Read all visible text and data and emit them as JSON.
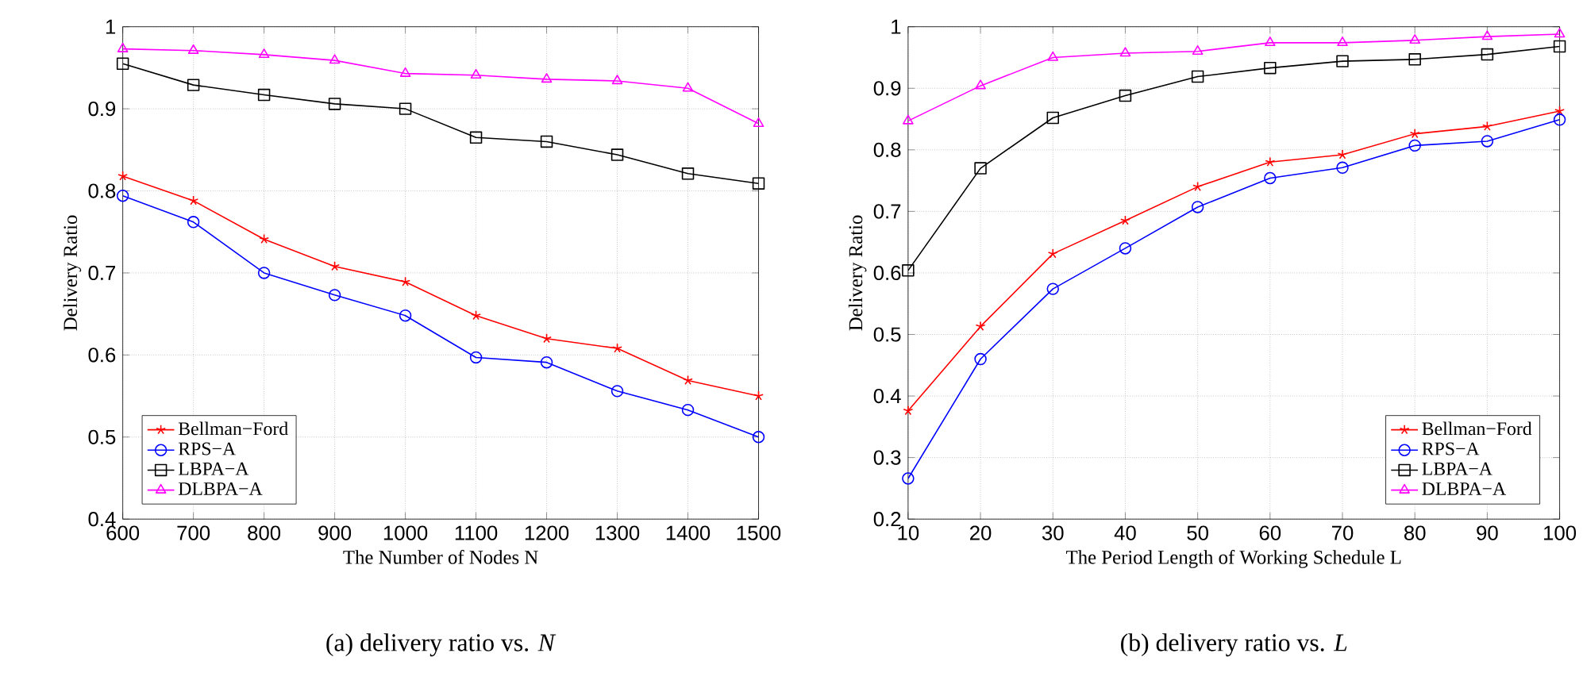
{
  "chart_data": [
    {
      "type": "line",
      "xlabel": "The Number of Nodes N",
      "ylabel": "Delivery Ratio",
      "annotations": [
        "(a) delivery ratio vs. *N*"
      ],
      "x": [
        600,
        700,
        800,
        900,
        1000,
        1100,
        1200,
        1300,
        1400,
        1500
      ],
      "xlim": [
        600,
        1500
      ],
      "xticks": [
        600,
        700,
        800,
        900,
        1000,
        1100,
        1200,
        1300,
        1400,
        1500
      ],
      "ylim": [
        0.4,
        1
      ],
      "yticks": [
        0.4,
        0.5,
        0.6,
        0.7,
        0.8,
        0.9,
        1
      ],
      "grid": true,
      "legend": "bottom left",
      "series": [
        {
          "name": "Bellman−Ford",
          "color": "#ff0000",
          "marker": "cross",
          "values": [
            0.818,
            0.788,
            0.741,
            0.708,
            0.689,
            0.648,
            0.62,
            0.608,
            0.569,
            0.55
          ]
        },
        {
          "name": "RPS−A",
          "color": "#0000ff",
          "marker": "circle",
          "values": [
            0.794,
            0.762,
            0.7,
            0.673,
            0.648,
            0.597,
            0.591,
            0.556,
            0.533,
            0.5
          ]
        },
        {
          "name": "LBPA−A",
          "color": "#000000",
          "marker": "square",
          "values": [
            0.955,
            0.929,
            0.917,
            0.906,
            0.9,
            0.865,
            0.86,
            0.844,
            0.821,
            0.809
          ]
        },
        {
          "name": "DLBPA−A",
          "color": "#ff00ff",
          "marker": "triangle",
          "values": [
            0.973,
            0.971,
            0.966,
            0.959,
            0.943,
            0.941,
            0.936,
            0.934,
            0.925,
            0.882
          ]
        }
      ]
    },
    {
      "type": "line",
      "xlabel": "The Period Length of Working Schedule L",
      "ylabel": "Delivery Ratio",
      "annotations": [
        "(b) delivery ratio vs. *L*"
      ],
      "x": [
        10,
        20,
        30,
        40,
        50,
        60,
        70,
        80,
        90,
        100
      ],
      "xlim": [
        10,
        100
      ],
      "xticks": [
        10,
        20,
        30,
        40,
        50,
        60,
        70,
        80,
        90,
        100
      ],
      "ylim": [
        0.2,
        1
      ],
      "yticks": [
        0.2,
        0.3,
        0.4,
        0.5,
        0.6,
        0.7,
        0.8,
        0.9,
        1
      ],
      "grid": true,
      "legend": "bottom right",
      "series": [
        {
          "name": "Bellman−Ford",
          "color": "#ff0000",
          "marker": "cross",
          "values": [
            0.376,
            0.513,
            0.631,
            0.685,
            0.74,
            0.78,
            0.792,
            0.826,
            0.838,
            0.863
          ]
        },
        {
          "name": "RPS−A",
          "color": "#0000ff",
          "marker": "circle",
          "values": [
            0.266,
            0.46,
            0.574,
            0.64,
            0.707,
            0.754,
            0.771,
            0.807,
            0.814,
            0.849
          ]
        },
        {
          "name": "LBPA−A",
          "color": "#000000",
          "marker": "square",
          "values": [
            0.604,
            0.77,
            0.852,
            0.888,
            0.919,
            0.933,
            0.944,
            0.947,
            0.955,
            0.968
          ]
        },
        {
          "name": "DLBPA−A",
          "color": "#ff00ff",
          "marker": "triangle",
          "values": [
            0.847,
            0.904,
            0.95,
            0.957,
            0.96,
            0.974,
            0.974,
            0.978,
            0.984,
            0.988
          ]
        }
      ]
    }
  ]
}
